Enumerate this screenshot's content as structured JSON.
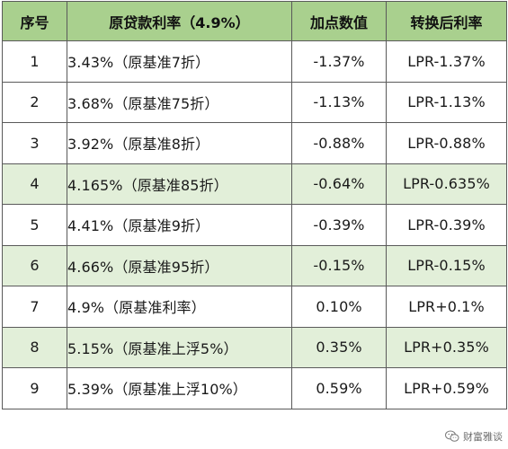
{
  "table": {
    "headers": [
      "序号",
      "原贷款利率（4.9%）",
      "加点数值",
      "转换后利率"
    ],
    "rows": [
      {
        "no": "1",
        "orig": "3.43%（原基准7折）",
        "add": "-1.37%",
        "conv": "LPR-1.37%"
      },
      {
        "no": "2",
        "orig": "3.68%（原基准75折）",
        "add": "-1.13%",
        "conv": "LPR-1.13%"
      },
      {
        "no": "3",
        "orig": "3.92%（原基准8折）",
        "add": "-0.88%",
        "conv": "LPR-0.88%"
      },
      {
        "no": "4",
        "orig": "4.165%（原基准85折）",
        "add": "-0.64%",
        "conv": "LPR-0.635%"
      },
      {
        "no": "5",
        "orig": "4.41%（原基准9折）",
        "add": "-0.39%",
        "conv": "LPR-0.39%"
      },
      {
        "no": "6",
        "orig": "4.66%（原基准95折）",
        "add": "-0.15%",
        "conv": "LPR-0.15%"
      },
      {
        "no": "7",
        "orig": "4.9%（原基准利率）",
        "add": "0.10%",
        "conv": "LPR+0.1%"
      },
      {
        "no": "8",
        "orig": "5.15%（原基准上浮5%）",
        "add": "0.35%",
        "conv": "LPR+0.35%"
      },
      {
        "no": "9",
        "orig": "5.39%（原基准上浮10%）",
        "add": "0.59%",
        "conv": "LPR+0.59%"
      }
    ]
  },
  "watermark": {
    "text": "财富雅谈",
    "icon": "wechat-icon"
  },
  "colors": {
    "header_bg": "#a9d08e",
    "stripe_bg": "#e2efd9",
    "border": "#5a5a5a"
  }
}
